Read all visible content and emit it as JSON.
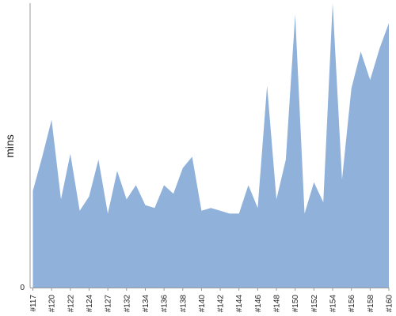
{
  "chart_data": {
    "type": "area",
    "xlabel": "",
    "ylabel": "mins",
    "title": "",
    "color": "#8fb1da",
    "ylim": [
      0,
      100
    ],
    "y_ticks": [
      {
        "value": 0,
        "label": "0"
      }
    ],
    "x_tick_labels": [
      "#117",
      "#120",
      "#122",
      "#124",
      "#127",
      "#132",
      "#134",
      "#136",
      "#138",
      "#140",
      "#142",
      "#144",
      "#146",
      "#148",
      "#150",
      "#152",
      "#154",
      "#156",
      "#158",
      "#160"
    ],
    "x_tick_indices": [
      0,
      2,
      4,
      6,
      8,
      10,
      12,
      14,
      16,
      18,
      20,
      22,
      24,
      26,
      28,
      30,
      32,
      34,
      36,
      38
    ],
    "values": [
      34,
      46,
      59,
      31,
      47,
      27,
      32,
      45,
      26,
      41,
      31,
      36,
      29,
      28,
      36,
      33,
      42,
      46,
      27,
      28,
      27,
      26,
      26,
      36,
      28,
      71,
      31,
      45,
      96,
      26,
      37,
      30,
      100,
      38,
      70,
      83,
      73,
      84,
      93
    ],
    "grid": false,
    "legend": "none"
  }
}
